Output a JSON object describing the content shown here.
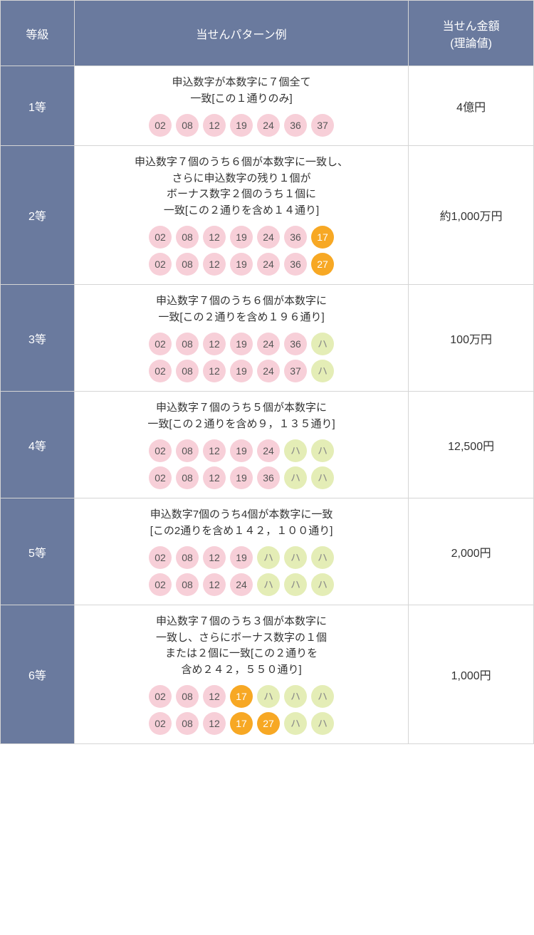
{
  "colors": {
    "header_bg": "#6a7a9e",
    "header_fg": "#ffffff",
    "border": "#d5d5d5",
    "text": "#333333",
    "ball_pink_bg": "#f7cfd8",
    "ball_pink_fg": "#555555",
    "ball_orange_bg": "#f7a824",
    "ball_orange_fg": "#ffffff",
    "ball_green_bg": "#e4edb6",
    "ball_green_fg": "#888888"
  },
  "headers": {
    "grade": "等級",
    "pattern": "当せんパターン例",
    "amount_line1": "当せん金額",
    "amount_line2": "(理論値)"
  },
  "rows": [
    {
      "grade": "1等",
      "desc_lines": [
        "申込数字が本数字に７個全て",
        "一致[この１通りのみ]"
      ],
      "ball_rows": [
        [
          {
            "v": "02",
            "c": "pink"
          },
          {
            "v": "08",
            "c": "pink"
          },
          {
            "v": "12",
            "c": "pink"
          },
          {
            "v": "19",
            "c": "pink"
          },
          {
            "v": "24",
            "c": "pink"
          },
          {
            "v": "36",
            "c": "pink"
          },
          {
            "v": "37",
            "c": "pink"
          }
        ]
      ],
      "amount": "4億円"
    },
    {
      "grade": "2等",
      "desc_lines": [
        "申込数字７個のうち６個が本数字に一致し、",
        "さらに申込数字の残り１個が",
        "ボーナス数字２個のうち１個に",
        "一致[この２通りを含め１４通り]"
      ],
      "ball_rows": [
        [
          {
            "v": "02",
            "c": "pink"
          },
          {
            "v": "08",
            "c": "pink"
          },
          {
            "v": "12",
            "c": "pink"
          },
          {
            "v": "19",
            "c": "pink"
          },
          {
            "v": "24",
            "c": "pink"
          },
          {
            "v": "36",
            "c": "pink"
          },
          {
            "v": "17",
            "c": "orange"
          }
        ],
        [
          {
            "v": "02",
            "c": "pink"
          },
          {
            "v": "08",
            "c": "pink"
          },
          {
            "v": "12",
            "c": "pink"
          },
          {
            "v": "19",
            "c": "pink"
          },
          {
            "v": "24",
            "c": "pink"
          },
          {
            "v": "36",
            "c": "pink"
          },
          {
            "v": "27",
            "c": "orange"
          }
        ]
      ],
      "amount": "約1,000万円"
    },
    {
      "grade": "3等",
      "desc_lines": [
        "申込数字７個のうち６個が本数字に",
        "一致[この２通りを含め１９６通り]"
      ],
      "ball_rows": [
        [
          {
            "v": "02",
            "c": "pink"
          },
          {
            "v": "08",
            "c": "pink"
          },
          {
            "v": "12",
            "c": "pink"
          },
          {
            "v": "19",
            "c": "pink"
          },
          {
            "v": "24",
            "c": "pink"
          },
          {
            "v": "36",
            "c": "pink"
          },
          {
            "v": "ハ",
            "c": "green"
          }
        ],
        [
          {
            "v": "02",
            "c": "pink"
          },
          {
            "v": "08",
            "c": "pink"
          },
          {
            "v": "12",
            "c": "pink"
          },
          {
            "v": "19",
            "c": "pink"
          },
          {
            "v": "24",
            "c": "pink"
          },
          {
            "v": "37",
            "c": "pink"
          },
          {
            "v": "ハ",
            "c": "green"
          }
        ]
      ],
      "amount": "100万円"
    },
    {
      "grade": "4等",
      "desc_lines": [
        "申込数字７個のうち５個が本数字に",
        "一致[この２通りを含め９，１３５通り]"
      ],
      "ball_rows": [
        [
          {
            "v": "02",
            "c": "pink"
          },
          {
            "v": "08",
            "c": "pink"
          },
          {
            "v": "12",
            "c": "pink"
          },
          {
            "v": "19",
            "c": "pink"
          },
          {
            "v": "24",
            "c": "pink"
          },
          {
            "v": "ハ",
            "c": "green"
          },
          {
            "v": "ハ",
            "c": "green"
          }
        ],
        [
          {
            "v": "02",
            "c": "pink"
          },
          {
            "v": "08",
            "c": "pink"
          },
          {
            "v": "12",
            "c": "pink"
          },
          {
            "v": "19",
            "c": "pink"
          },
          {
            "v": "36",
            "c": "pink"
          },
          {
            "v": "ハ",
            "c": "green"
          },
          {
            "v": "ハ",
            "c": "green"
          }
        ]
      ],
      "amount": "12,500円"
    },
    {
      "grade": "5等",
      "desc_lines": [
        "申込数字7個のうち4個が本数字に一致",
        "[この2通りを含め１４２，１００通り]"
      ],
      "ball_rows": [
        [
          {
            "v": "02",
            "c": "pink"
          },
          {
            "v": "08",
            "c": "pink"
          },
          {
            "v": "12",
            "c": "pink"
          },
          {
            "v": "19",
            "c": "pink"
          },
          {
            "v": "ハ",
            "c": "green"
          },
          {
            "v": "ハ",
            "c": "green"
          },
          {
            "v": "ハ",
            "c": "green"
          }
        ],
        [
          {
            "v": "02",
            "c": "pink"
          },
          {
            "v": "08",
            "c": "pink"
          },
          {
            "v": "12",
            "c": "pink"
          },
          {
            "v": "24",
            "c": "pink"
          },
          {
            "v": "ハ",
            "c": "green"
          },
          {
            "v": "ハ",
            "c": "green"
          },
          {
            "v": "ハ",
            "c": "green"
          }
        ]
      ],
      "amount": "2,000円"
    },
    {
      "grade": "6等",
      "desc_lines": [
        "申込数字７個のうち３個が本数字に",
        "一致し、さらにボーナス数字の１個",
        "または２個に一致[この２通りを",
        "含め２４２，５５０通り]"
      ],
      "ball_rows": [
        [
          {
            "v": "02",
            "c": "pink"
          },
          {
            "v": "08",
            "c": "pink"
          },
          {
            "v": "12",
            "c": "pink"
          },
          {
            "v": "17",
            "c": "orange"
          },
          {
            "v": "ハ",
            "c": "green"
          },
          {
            "v": "ハ",
            "c": "green"
          },
          {
            "v": "ハ",
            "c": "green"
          }
        ],
        [
          {
            "v": "02",
            "c": "pink"
          },
          {
            "v": "08",
            "c": "pink"
          },
          {
            "v": "12",
            "c": "pink"
          },
          {
            "v": "17",
            "c": "orange"
          },
          {
            "v": "27",
            "c": "orange"
          },
          {
            "v": "ハ",
            "c": "green"
          },
          {
            "v": "ハ",
            "c": "green"
          }
        ]
      ],
      "amount": "1,000円"
    }
  ]
}
